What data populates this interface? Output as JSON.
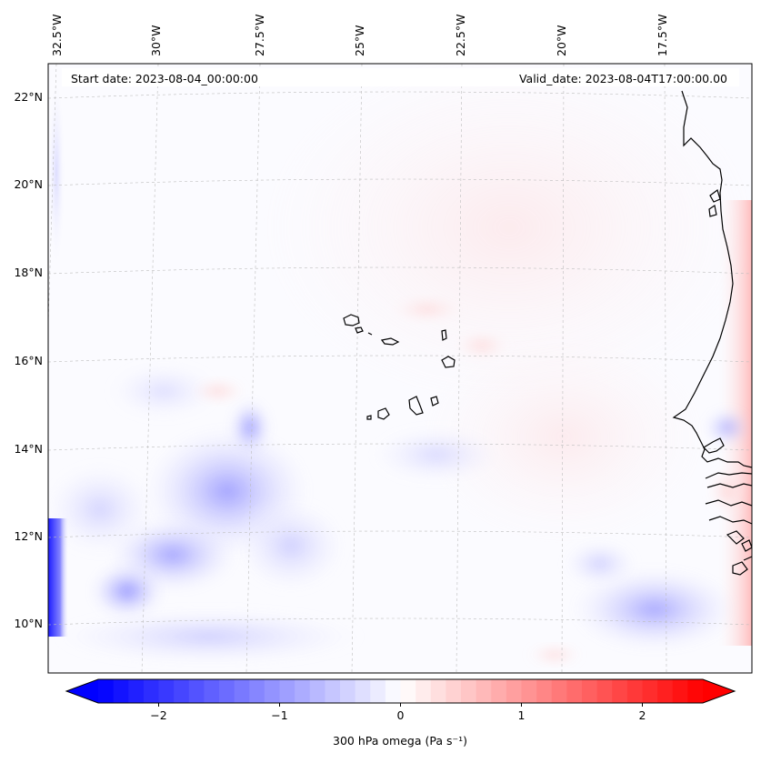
{
  "map": {
    "projection": "lambert-conformal",
    "lon_ticks": [
      {
        "label": "32.5°W",
        "lon": -32.5
      },
      {
        "label": "30°W",
        "lon": -30
      },
      {
        "label": "27.5°W",
        "lon": -27.5
      },
      {
        "label": "25°W",
        "lon": -25
      },
      {
        "label": "22.5°W",
        "lon": -22.5
      },
      {
        "label": "20°W",
        "lon": -20
      },
      {
        "label": "17.5°W",
        "lon": -17.5
      }
    ],
    "lat_ticks": [
      {
        "label": "22°N",
        "lat": 22
      },
      {
        "label": "20°N",
        "lat": 20
      },
      {
        "label": "18°N",
        "lat": 18
      },
      {
        "label": "16°N",
        "lat": 16
      },
      {
        "label": "14°N",
        "lat": 14
      },
      {
        "label": "12°N",
        "lat": 12
      },
      {
        "label": "10°N",
        "lat": 10
      }
    ],
    "start_date_text": "Start date: 2023-08-04_00:00:00",
    "valid_date_text": "Valid_date: 2023-08-04T17:00:00.00",
    "field": "300 hPa omega",
    "features": [
      "Cape Verde islands",
      "West African coastline"
    ]
  },
  "colorbar": {
    "label": "300 hPa omega (Pa s⁻¹)",
    "ticks": [
      "−2",
      "−1",
      "0",
      "1",
      "2"
    ],
    "tick_values": [
      -2,
      -1,
      0,
      1,
      2
    ],
    "vmin": -2.5,
    "vmax": 2.5,
    "colormap": "bwr",
    "extend": "both",
    "colors": {
      "negative": "#0000ff",
      "zero": "#ffffff",
      "positive": "#ff0000"
    }
  }
}
